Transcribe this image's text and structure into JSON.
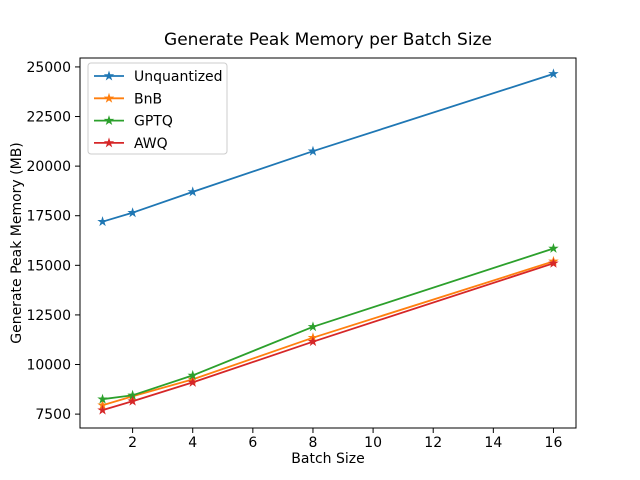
{
  "figure": {
    "title": "Generate Peak Memory per Batch Size",
    "xlabel": "Batch Size",
    "ylabel": "Generate Peak Memory (MB)",
    "background_color": "#ffffff",
    "frame_color": "#000000"
  },
  "chart_data": {
    "type": "line",
    "title": "Generate Peak Memory per Batch Size",
    "xlabel": "Batch Size",
    "ylabel": "Generate Peak Memory (MB)",
    "x": [
      1,
      2,
      4,
      8,
      16
    ],
    "series": [
      {
        "name": "Unquantized",
        "color": "#1f77b4",
        "marker": "star",
        "values": [
          17200,
          17650,
          18700,
          20750,
          24650
        ]
      },
      {
        "name": "BnB",
        "color": "#ff7f0e",
        "marker": "star",
        "values": [
          7950,
          8400,
          9250,
          11350,
          15200
        ]
      },
      {
        "name": "GPTQ",
        "color": "#2ca02c",
        "marker": "star",
        "values": [
          8250,
          8450,
          9450,
          11900,
          15850
        ]
      },
      {
        "name": "AWQ",
        "color": "#d62728",
        "marker": "star",
        "values": [
          7700,
          8150,
          9100,
          11150,
          15100
        ]
      }
    ],
    "xlim": [
      0.25,
      16.75
    ],
    "ylim": [
      6800,
      25450
    ],
    "xticks": [
      2,
      4,
      6,
      8,
      10,
      12,
      14,
      16
    ],
    "yticks": [
      7500,
      10000,
      12500,
      15000,
      17500,
      20000,
      22500,
      25000
    ],
    "grid": false,
    "legend_position": "upper left",
    "legend_border_color": "#cccccc"
  }
}
